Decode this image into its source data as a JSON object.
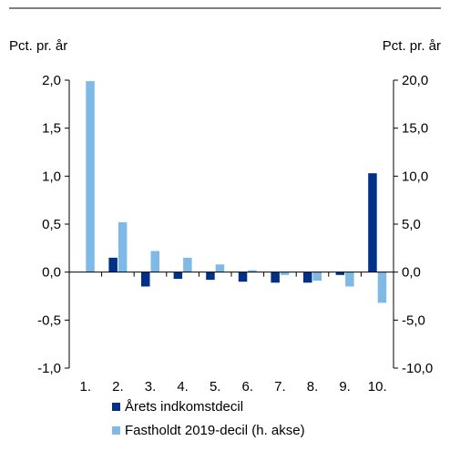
{
  "chart_data": {
    "type": "bar",
    "categories": [
      "1.",
      "2.",
      "3.",
      "4.",
      "5.",
      "6.",
      "7.",
      "8.",
      "9.",
      "10."
    ],
    "left_axis": {
      "unit_label": "Pct. pr. år",
      "ylim": [
        -1.0,
        2.0
      ],
      "ticks": [
        2.0,
        1.5,
        1.0,
        0.5,
        0.0,
        -0.5,
        -1.0
      ],
      "tick_labels": [
        "2,0",
        "1,5",
        "1,0",
        "0,5",
        "0,0",
        "-0,5",
        "-1,0"
      ]
    },
    "right_axis": {
      "unit_label": "Pct. pr. år",
      "ylim": [
        -10.0,
        20.0
      ],
      "ticks": [
        20.0,
        15.0,
        10.0,
        5.0,
        0.0,
        -5.0,
        -10.0
      ],
      "tick_labels": [
        "20,0",
        "15,0",
        "10,0",
        "5,0",
        "0,0",
        "-5,0",
        "-10,0"
      ]
    },
    "series": [
      {
        "name": "Årets indkomstdecil",
        "axis": "left",
        "color": "#003087",
        "values": [
          0.0,
          0.15,
          -0.15,
          -0.07,
          -0.08,
          -0.1,
          -0.11,
          -0.11,
          -0.03,
          1.03
        ]
      },
      {
        "name": "Fastholdt 2019-decil (h. akse)",
        "axis": "right",
        "color": "#7fb9e6",
        "values": [
          19.9,
          5.2,
          2.2,
          1.5,
          0.8,
          0.2,
          -0.3,
          -0.9,
          -1.5,
          -3.2
        ]
      }
    ],
    "legend_position": "bottom",
    "grid": false
  }
}
